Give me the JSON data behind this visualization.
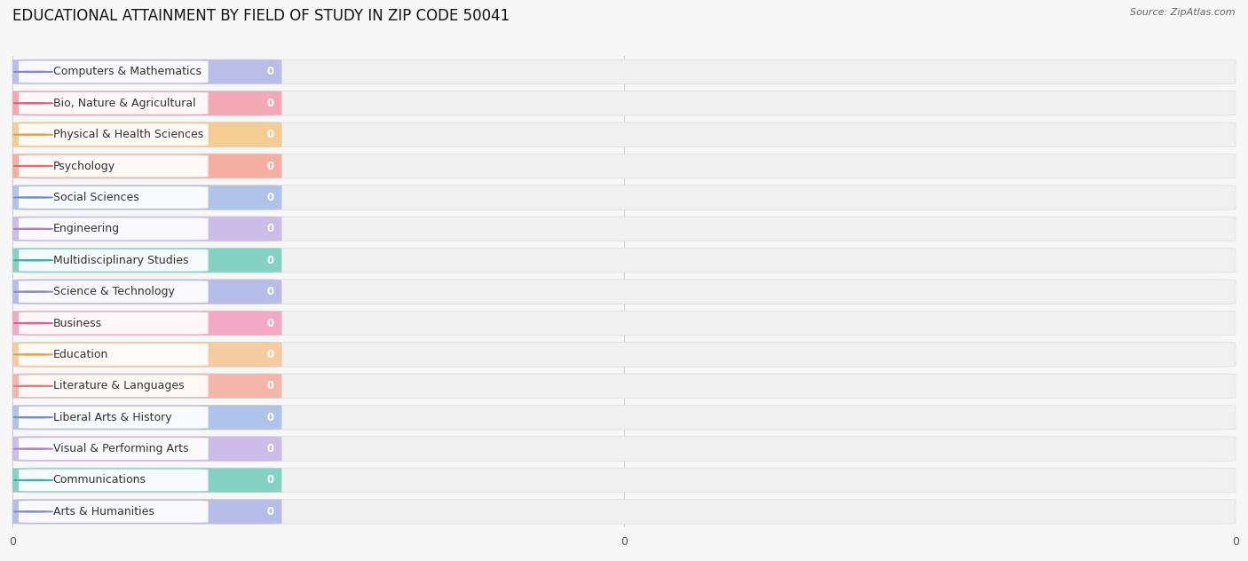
{
  "title": "EDUCATIONAL ATTAINMENT BY FIELD OF STUDY IN ZIP CODE 50041",
  "source": "Source: ZipAtlas.com",
  "categories": [
    "Computers & Mathematics",
    "Bio, Nature & Agricultural",
    "Physical & Health Sciences",
    "Psychology",
    "Social Sciences",
    "Engineering",
    "Multidisciplinary Studies",
    "Science & Technology",
    "Business",
    "Education",
    "Literature & Languages",
    "Liberal Arts & History",
    "Visual & Performing Arts",
    "Communications",
    "Arts & Humanities"
  ],
  "values": [
    0,
    0,
    0,
    0,
    0,
    0,
    0,
    0,
    0,
    0,
    0,
    0,
    0,
    0,
    0
  ],
  "bar_colors": [
    "#b3b8e8",
    "#f5a0b0",
    "#f5c98a",
    "#f5a898",
    "#a8c0e8",
    "#c8b8e8",
    "#78cfc0",
    "#b0b8e8",
    "#f5a0c0",
    "#f5c898",
    "#f5b0a0",
    "#a8c0e8",
    "#c8b8e8",
    "#78cfc0",
    "#b0b8e8"
  ],
  "dot_colors": [
    "#8888cc",
    "#e06080",
    "#e0a050",
    "#e07070",
    "#7090c8",
    "#a880c8",
    "#40b0a0",
    "#8888cc",
    "#e06090",
    "#e0a050",
    "#e08070",
    "#7090c8",
    "#a880c8",
    "#40b0a0",
    "#8888cc"
  ],
  "background_color": "#f7f7f7",
  "row_bg_color": "#efefef",
  "title_fontsize": 12,
  "label_fontsize": 9,
  "source_fontsize": 8,
  "xlim": [
    0,
    1
  ],
  "n_xticks": 3,
  "xtick_labels": [
    "0",
    "0",
    "0"
  ],
  "xtick_positions": [
    0.0,
    0.5,
    1.0
  ]
}
